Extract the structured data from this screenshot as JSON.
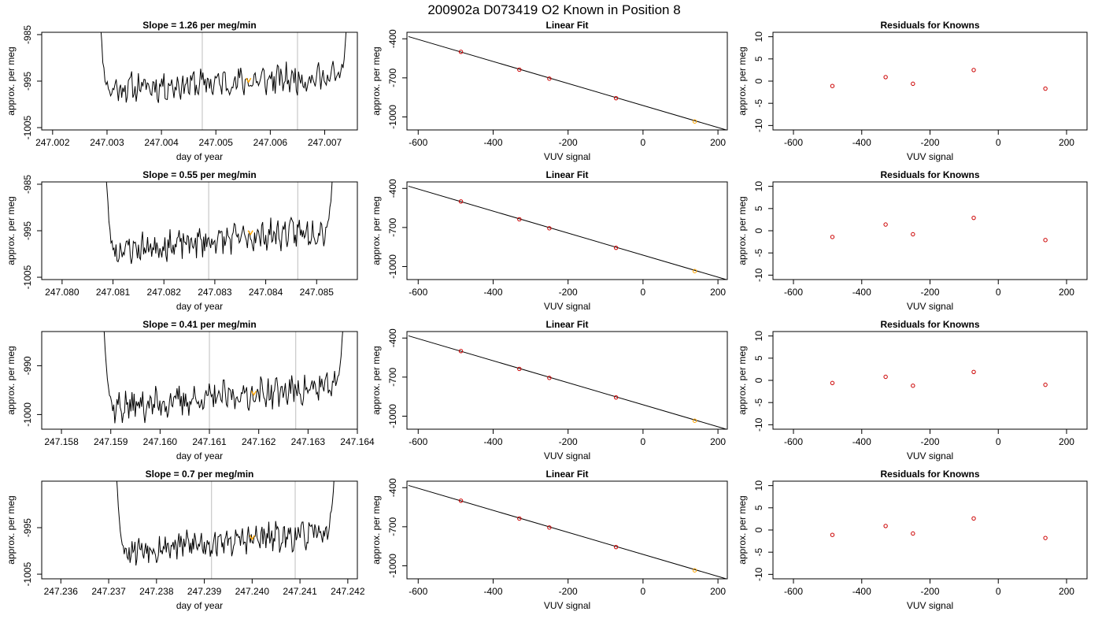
{
  "page_title": "200902a     D073419   O2 Known in Position  8",
  "colors": {
    "line": "#000000",
    "marker": "#cc0000",
    "highlight": "#ffa500",
    "vline": "#c8c8c8",
    "frame": "#000000"
  },
  "chart_data": [
    {
      "type": "line",
      "title": "Slope =  1.26  per meg/min",
      "xlabel": "day of year",
      "ylabel": "approx. per meg",
      "xlim": [
        247.0018,
        247.0076
      ],
      "ylim": [
        -1005.5,
        -984.5
      ],
      "xticks": [
        "247.002",
        "247.003",
        "247.004",
        "247.005",
        "247.006",
        "247.007"
      ],
      "yticks": [
        "-1005",
        "-995",
        "-985"
      ],
      "span": [
        247.0028,
        247.0075
      ],
      "vlines": [
        247.00475,
        247.0065
      ],
      "level_start": -996.8,
      "level_end": -993.8,
      "highlight_point": [
        247.0056,
        -994.7
      ],
      "seed": 11
    },
    {
      "type": "scatter",
      "title": "Linear Fit",
      "xlabel": "VUV signal",
      "ylabel": "approx. per meg",
      "xlim": [
        -630,
        225
      ],
      "ylim": [
        -1100,
        -350
      ],
      "xticks": [
        "-600",
        "-400",
        "-200",
        "0",
        "200"
      ],
      "yticks": [
        "-400",
        "-700",
        "-1000"
      ],
      "fit_line": {
        "x": [
          -626,
          222
        ],
        "y": [
          -383,
          -1100
        ]
      },
      "points": {
        "x": [
          -486,
          -330,
          -250,
          -72,
          138
        ],
        "y": [
          -500,
          -637,
          -706,
          -856,
          -1035
        ]
      },
      "highlight_index": 4
    },
    {
      "type": "scatter",
      "title": "Residuals for Knowns",
      "xlabel": "VUV signal",
      "ylabel": "approx. per meg",
      "xlim": [
        -660,
        260
      ],
      "ylim": [
        -11,
        11
      ],
      "xticks": [
        "-600",
        "-400",
        "-200",
        "0",
        "200"
      ],
      "yticks": [
        "-10",
        "-5",
        "0",
        "5",
        "10"
      ],
      "points": {
        "x": [
          -486,
          -330,
          -250,
          -72,
          138
        ],
        "y": [
          -1.1,
          0.9,
          -0.6,
          2.5,
          -1.7
        ]
      }
    },
    {
      "type": "line",
      "title": "Slope =  0.55  per meg/min",
      "xlabel": "day of year",
      "ylabel": "approx. per meg",
      "xlim": [
        247.0796,
        247.0858
      ],
      "ylim": [
        -1005.5,
        -984.5
      ],
      "xticks": [
        "247.080",
        "247.081",
        "247.082",
        "247.083",
        "247.084",
        "247.085"
      ],
      "yticks": [
        "-1005",
        "-995",
        "-985"
      ],
      "span": [
        247.0808,
        247.0854
      ],
      "vlines": [
        247.08288,
        247.08463
      ],
      "level_start": -999.5,
      "level_end": -994.5,
      "highlight_point": [
        247.0837,
        -995.3
      ],
      "seed": 23
    },
    {
      "type": "scatter",
      "title": "Linear Fit",
      "xlabel": "VUV signal",
      "ylabel": "approx. per meg",
      "xlim": [
        -630,
        225
      ],
      "ylim": [
        -1100,
        -350
      ],
      "xticks": [
        "-600",
        "-400",
        "-200",
        "0",
        "200"
      ],
      "yticks": [
        "-400",
        "-700",
        "-1000"
      ],
      "fit_line": {
        "x": [
          -626,
          222
        ],
        "y": [
          -383,
          -1100
        ]
      },
      "points": {
        "x": [
          -486,
          -330,
          -250,
          -72,
          138
        ],
        "y": [
          -500,
          -637,
          -706,
          -856,
          -1035
        ]
      },
      "highlight_index": 4
    },
    {
      "type": "scatter",
      "title": "Residuals for Knowns",
      "xlabel": "VUV signal",
      "ylabel": "approx. per meg",
      "xlim": [
        -660,
        260
      ],
      "ylim": [
        -11,
        11
      ],
      "xticks": [
        "-600",
        "-400",
        "-200",
        "0",
        "200"
      ],
      "yticks": [
        "-10",
        "-5",
        "0",
        "5",
        "10"
      ],
      "points": {
        "x": [
          -486,
          -330,
          -250,
          -72,
          138
        ],
        "y": [
          -1.4,
          1.4,
          -0.8,
          2.9,
          -2.1
        ]
      }
    },
    {
      "type": "line",
      "title": "Slope =  0.41  per meg/min",
      "xlabel": "day of year",
      "ylabel": "approx. per meg",
      "xlim": [
        247.1576,
        247.164
      ],
      "ylim": [
        -1003,
        -983
      ],
      "xticks": [
        "247.158",
        "247.159",
        "247.160",
        "247.161",
        "247.162",
        "247.163",
        "247.164"
      ],
      "yticks": [
        "-1000",
        "-990"
      ],
      "span": [
        247.1588,
        247.1638
      ],
      "vlines": [
        247.161,
        247.16275
      ],
      "level_start": -998.8,
      "level_end": -994.0,
      "highlight_point": [
        247.1619,
        -995.5
      ],
      "seed": 37
    },
    {
      "type": "scatter",
      "title": "Linear Fit",
      "xlabel": "VUV signal",
      "ylabel": "approx. per meg",
      "xlim": [
        -630,
        225
      ],
      "ylim": [
        -1100,
        -350
      ],
      "xticks": [
        "-600",
        "-400",
        "-200",
        "0",
        "200"
      ],
      "yticks": [
        "-400",
        "-700",
        "-1000"
      ],
      "fit_line": {
        "x": [
          -626,
          222
        ],
        "y": [
          -383,
          -1100
        ]
      },
      "points": {
        "x": [
          -486,
          -330,
          -250,
          -72,
          138
        ],
        "y": [
          -500,
          -637,
          -706,
          -856,
          -1035
        ]
      },
      "highlight_index": 4
    },
    {
      "type": "scatter",
      "title": "Residuals for Knowns",
      "xlabel": "VUV signal",
      "ylabel": "approx. per meg",
      "xlim": [
        -660,
        260
      ],
      "ylim": [
        -11,
        11
      ],
      "xticks": [
        "-600",
        "-400",
        "-200",
        "0",
        "200"
      ],
      "yticks": [
        "-10",
        "-5",
        "0",
        "5",
        "10"
      ],
      "points": {
        "x": [
          -486,
          -330,
          -250,
          -72,
          138
        ],
        "y": [
          -0.6,
          0.8,
          -1.2,
          1.9,
          -1.0
        ]
      }
    },
    {
      "type": "line",
      "title": "Slope =  0.7  per meg/min",
      "xlabel": "day of year",
      "ylabel": "approx. per meg",
      "xlim": [
        247.2356,
        247.2422
      ],
      "ylim": [
        -1006,
        -985
      ],
      "xticks": [
        "247.236",
        "247.237",
        "247.238",
        "247.239",
        "247.240",
        "247.241",
        "247.242"
      ],
      "yticks": [
        "-1005",
        "-995"
      ],
      "span": [
        247.2371,
        247.2418
      ],
      "vlines": [
        247.23915,
        247.2409
      ],
      "level_start": -1000.0,
      "level_end": -996.0,
      "highlight_point": [
        247.24,
        -997.0
      ],
      "seed": 53
    },
    {
      "type": "scatter",
      "title": "Linear Fit",
      "xlabel": "VUV signal",
      "ylabel": "approx. per meg",
      "xlim": [
        -630,
        225
      ],
      "ylim": [
        -1100,
        -350
      ],
      "xticks": [
        "-600",
        "-400",
        "-200",
        "0",
        "200"
      ],
      "yticks": [
        "-400",
        "-700",
        "-1000"
      ],
      "fit_line": {
        "x": [
          -626,
          222
        ],
        "y": [
          -383,
          -1100
        ]
      },
      "points": {
        "x": [
          -486,
          -330,
          -250,
          -72,
          138
        ],
        "y": [
          -500,
          -637,
          -706,
          -856,
          -1035
        ]
      },
      "highlight_index": 4
    },
    {
      "type": "scatter",
      "title": "Residuals for Knowns",
      "xlabel": "VUV signal",
      "ylabel": "approx. per meg",
      "xlim": [
        -660,
        260
      ],
      "ylim": [
        -11,
        11
      ],
      "xticks": [
        "-600",
        "-400",
        "-200",
        "0",
        "200"
      ],
      "yticks": [
        "-10",
        "-5",
        "0",
        "5",
        "10"
      ],
      "points": {
        "x": [
          -486,
          -330,
          -250,
          -72,
          138
        ],
        "y": [
          -1.1,
          0.9,
          -0.8,
          2.6,
          -1.8
        ]
      }
    }
  ]
}
